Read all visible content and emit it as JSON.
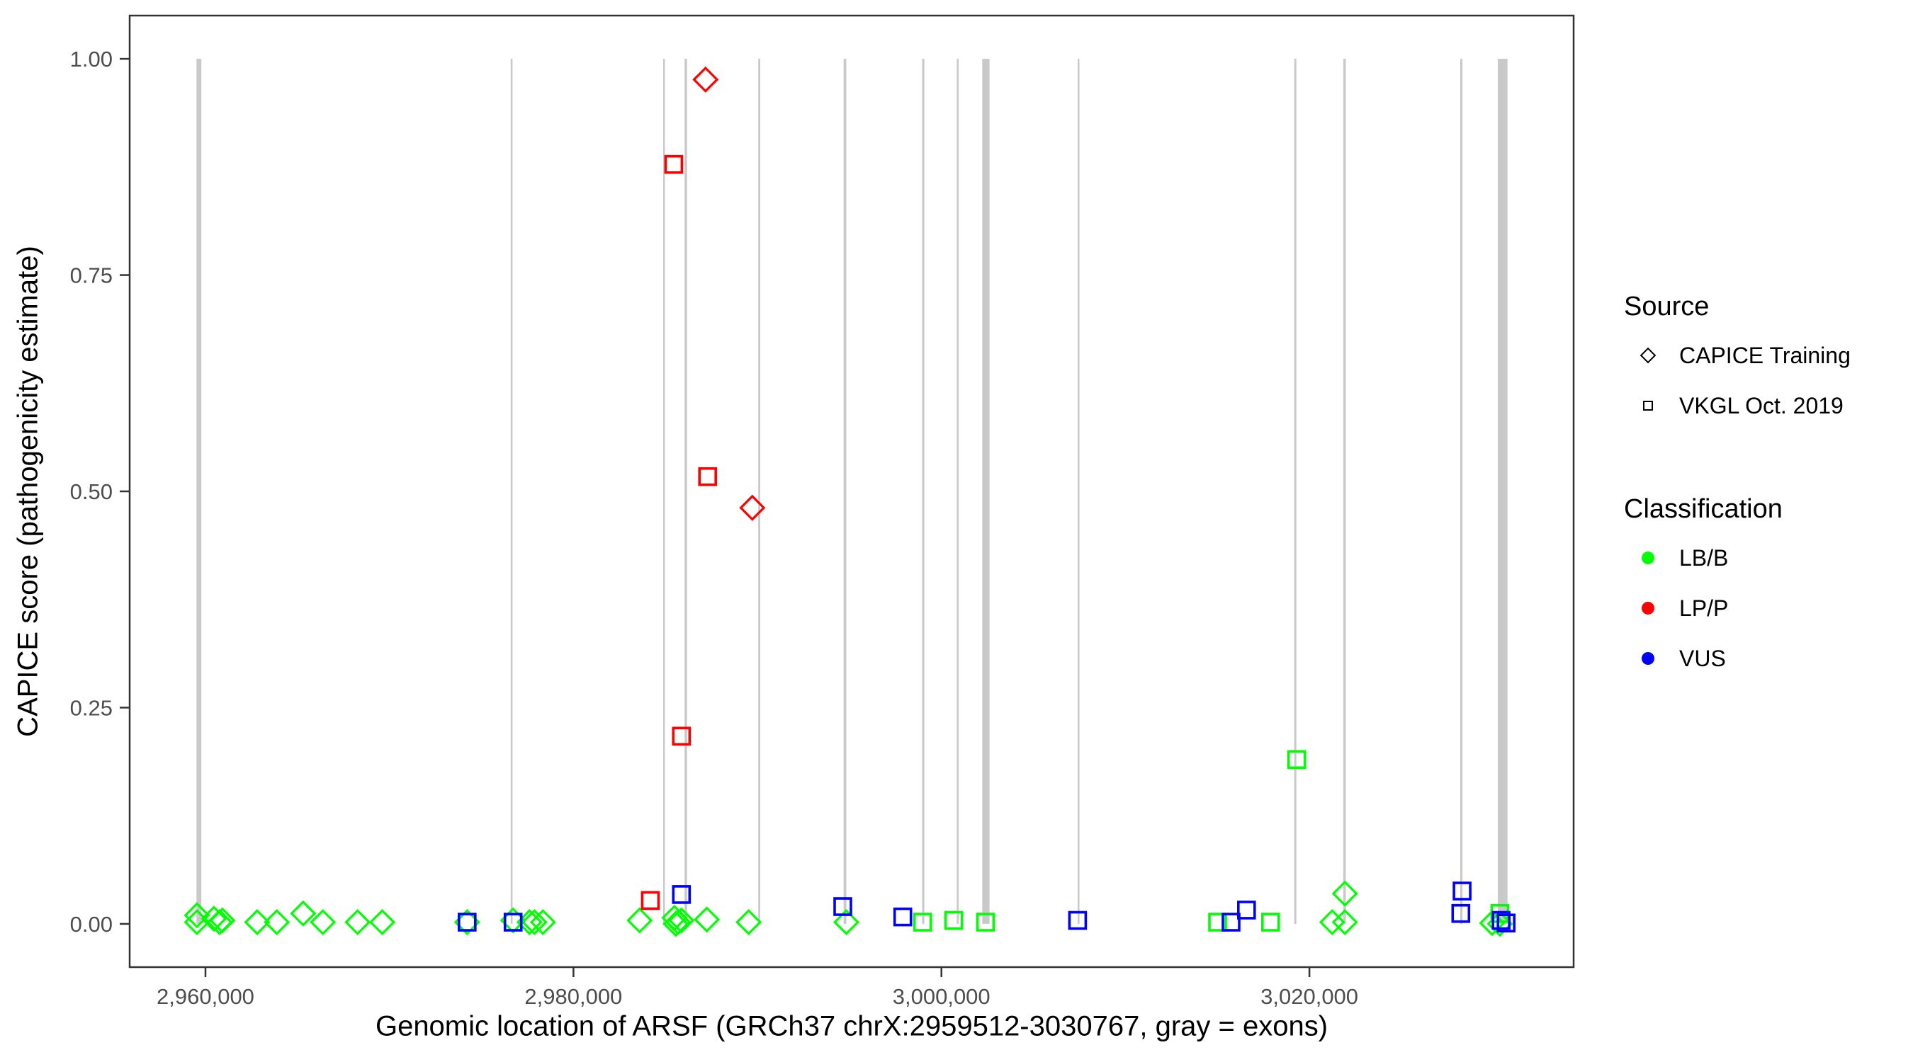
{
  "chart_data": {
    "type": "scatter",
    "title": "",
    "xlabel": "Genomic location of ARSF (GRCh37 chrX:2959512-3030767, gray = exons)",
    "ylabel": "CAPICE score (pathogenicity estimate)",
    "xlim": [
      2955880,
      3034360
    ],
    "ylim": [
      -0.05,
      1.05
    ],
    "grid": false,
    "legend_position": "right",
    "x_ticks": [
      {
        "value": 2960000,
        "label": "2,960,000"
      },
      {
        "value": 2980000,
        "label": "2,980,000"
      },
      {
        "value": 3000000,
        "label": "3,000,000"
      },
      {
        "value": 3020000,
        "label": "3,020,000"
      }
    ],
    "y_ticks": [
      {
        "value": 0.0,
        "label": "0.00"
      },
      {
        "value": 0.25,
        "label": "0.25"
      },
      {
        "value": 0.5,
        "label": "0.50"
      },
      {
        "value": 0.75,
        "label": "0.75"
      },
      {
        "value": 1.0,
        "label": "1.00"
      }
    ],
    "exons_note": "gray vertical bands mark exon locations, drawn from score 0 to 1",
    "exons_bp": [
      [
        2959512,
        2959776
      ],
      [
        2976590,
        2976690
      ],
      [
        2984876,
        2984952
      ],
      [
        2986040,
        2986176
      ],
      [
        2990045,
        2990152
      ],
      [
        2994684,
        2994829
      ],
      [
        2998950,
        2999070
      ],
      [
        3000833,
        3000937
      ],
      [
        3002219,
        3002615
      ],
      [
        3007405,
        3007503
      ],
      [
        3019175,
        3019292
      ],
      [
        3021840,
        3021980
      ],
      [
        3028200,
        3028320
      ],
      [
        3030238,
        3030767
      ]
    ],
    "series": [
      {
        "name": "CAPICE Training — LB/B",
        "source": "CAPICE Training",
        "classification": "LB/B",
        "shape": "diamond",
        "color": "#00FF00",
        "points": [
          [
            2959540,
            0.01
          ],
          [
            2959540,
            0.002
          ],
          [
            2960460,
            0.006
          ],
          [
            2960770,
            0.002
          ],
          [
            2960920,
            0.004
          ],
          [
            2962810,
            0.002
          ],
          [
            2963880,
            0.002
          ],
          [
            2965310,
            0.012
          ],
          [
            2966380,
            0.002
          ],
          [
            2968270,
            0.002
          ],
          [
            2969610,
            0.002
          ],
          [
            2974220,
            0.002
          ],
          [
            2976720,
            0.004
          ],
          [
            2977610,
            0.002
          ],
          [
            2977880,
            0.002
          ],
          [
            2978340,
            0.002
          ],
          [
            2983600,
            0.004
          ],
          [
            2985490,
            0.007
          ],
          [
            2985560,
            0.0
          ],
          [
            2985680,
            0.002
          ],
          [
            2985870,
            0.004
          ],
          [
            2987250,
            0.005
          ],
          [
            2989520,
            0.002
          ],
          [
            2994830,
            0.002
          ],
          [
            3021240,
            0.002
          ],
          [
            3021930,
            0.035
          ],
          [
            3021930,
            0.002
          ],
          [
            3029930,
            0.001
          ],
          [
            3030350,
            0.0
          ]
        ]
      },
      {
        "name": "VKGL Oct. 2019 — LB/B",
        "source": "VKGL Oct. 2019",
        "classification": "LB/B",
        "shape": "square",
        "color": "#00FF00",
        "points": [
          [
            2998980,
            0.002
          ],
          [
            3000670,
            0.004
          ],
          [
            3002400,
            0.002
          ],
          [
            3015010,
            0.002
          ],
          [
            3017890,
            0.002
          ],
          [
            3019310,
            0.19
          ],
          [
            3030350,
            0.012
          ]
        ]
      },
      {
        "name": "VKGL Oct. 2019 — VUS",
        "source": "VKGL Oct. 2019",
        "classification": "VUS",
        "shape": "square",
        "color": "#0000FF",
        "points": [
          [
            2974220,
            0.002
          ],
          [
            2976720,
            0.002
          ],
          [
            2985870,
            0.034
          ],
          [
            2994640,
            0.02
          ],
          [
            2997900,
            0.008
          ],
          [
            3007400,
            0.004
          ],
          [
            3015740,
            0.002
          ],
          [
            3016580,
            0.016
          ],
          [
            3028230,
            0.012
          ],
          [
            3028300,
            0.038
          ],
          [
            3030420,
            0.004
          ],
          [
            3030690,
            0.001
          ]
        ]
      },
      {
        "name": "VKGL Oct. 2019 — LP/P",
        "source": "VKGL Oct. 2019",
        "classification": "LP/P",
        "shape": "square",
        "color": "#FF0000",
        "points": [
          [
            2984180,
            0.027
          ],
          [
            2985450,
            0.878
          ],
          [
            2985870,
            0.217
          ],
          [
            2987290,
            0.517
          ]
        ]
      },
      {
        "name": "CAPICE Training — LP/P",
        "source": "CAPICE Training",
        "classification": "LP/P",
        "shape": "diamond",
        "color": "#FF0000",
        "points": [
          [
            2987180,
            0.976
          ],
          [
            2989720,
            0.481
          ]
        ]
      }
    ]
  },
  "legend": {
    "source_title": "Source",
    "source_items": [
      {
        "label": "CAPICE Training",
        "shape": "diamond"
      },
      {
        "label": "VKGL Oct. 2019",
        "shape": "square"
      }
    ],
    "classification_title": "Classification",
    "classification_items": [
      {
        "label": "LB/B",
        "color": "#00FF00"
      },
      {
        "label": "LP/P",
        "color": "#FF0000"
      },
      {
        "label": "VUS",
        "color": "#0000FF"
      }
    ]
  },
  "colors": {
    "exon_band": "#C9C9C9",
    "panel_border": "#333333",
    "tick_text": "#4D4D4D",
    "tick_mark": "#333333"
  }
}
